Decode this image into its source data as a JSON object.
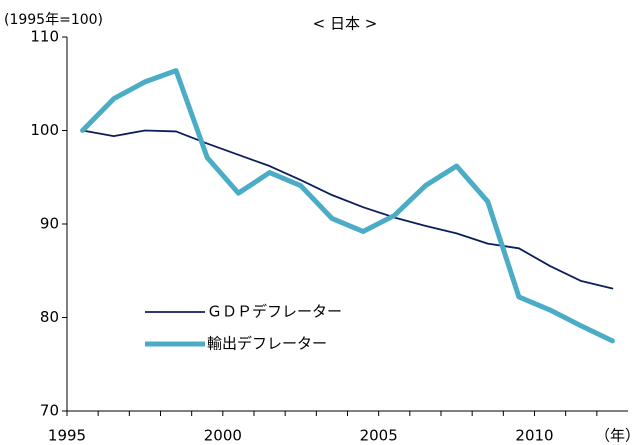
{
  "chart_data": {
    "type": "line",
    "title": "< 日本 >",
    "y_unit_note": "(1995年=100)",
    "x_unit_note": "（年）",
    "categories": [
      "1995",
      null,
      null,
      null,
      null,
      "2000",
      null,
      null,
      null,
      null,
      "2005",
      null,
      null,
      null,
      null,
      "2010",
      null,
      null
    ],
    "series": [
      {
        "name": "ＧＤＰデフレーター",
        "color": "#0b1f5c",
        "width": 1.8,
        "values": [
          100,
          99.4,
          100,
          99.9,
          98.6,
          97.4,
          96.2,
          94.7,
          93.1,
          91.8,
          90.7,
          89.8,
          89.0,
          87.9,
          87.4,
          85.5,
          83.9,
          83.1
        ]
      },
      {
        "name": "輸出デフレーター",
        "color": "#4bacc6",
        "width": 5,
        "values": [
          100,
          103.4,
          105.2,
          106.4,
          97.1,
          93.3,
          95.5,
          94.1,
          90.6,
          89.2,
          90.9,
          94.1,
          96.2,
          92.4,
          82.2,
          80.8,
          79.1,
          77.5
        ]
      }
    ],
    "ylim": [
      70,
      110
    ],
    "yticks": [
      70,
      80,
      90,
      100,
      110
    ],
    "legend": "lower left"
  }
}
